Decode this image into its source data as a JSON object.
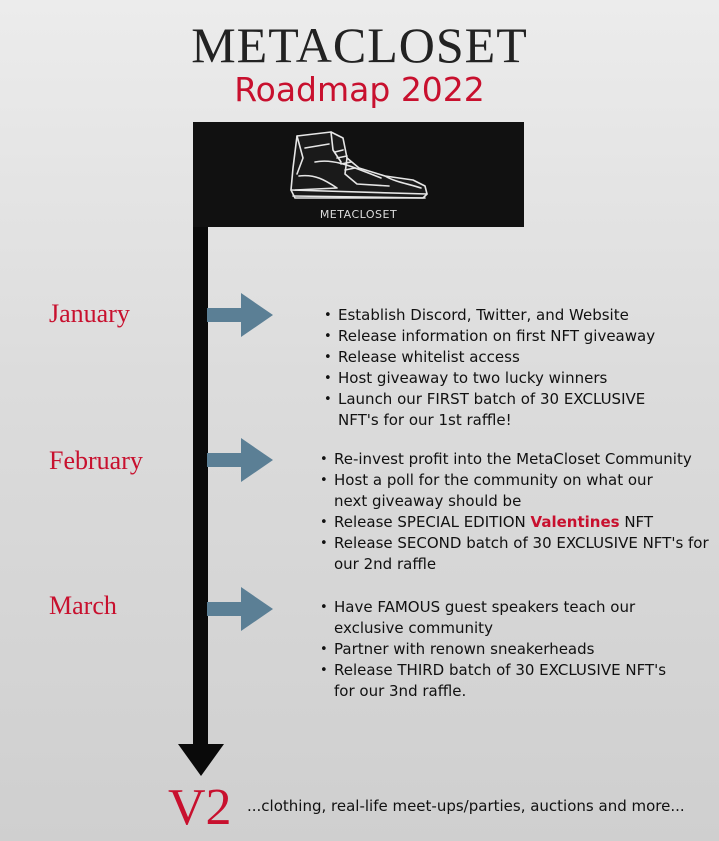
{
  "header": {
    "title": "METACLOSET",
    "subtitle": "Roadmap 2022"
  },
  "banner": {
    "logo_icon": "sneaker-icon",
    "label": "METACLOSET"
  },
  "colors": {
    "accent_red": "#c8102e",
    "arrow_blue": "#5b7f95",
    "timeline_black": "#0a0a0a"
  },
  "months": [
    {
      "name": "January",
      "items": [
        "Establish Discord, Twitter, and Website",
        "Release information on first NFT giveaway",
        "Release whitelist access",
        "Host giveaway to two lucky winners",
        "Launch our FIRST batch of 30 EXCLUSIVE NFT's for our 1st raffle!"
      ]
    },
    {
      "name": "February",
      "items": [
        "Re-invest profit into the MetaCloset Community",
        "Host a poll for the community on what our next giveaway should be",
        {
          "before": "Release SPECIAL EDITION ",
          "highlight": "Valentines",
          "after": " NFT"
        },
        "Release SECOND batch of 30 EXCLUSIVE NFT's for our 2nd raffle"
      ]
    },
    {
      "name": "March",
      "items": [
        "Have FAMOUS guest speakers teach our exclusive community",
        "Partner with renown sneakerheads",
        "Release THIRD batch of 30 EXCLUSIVE NFT's for our 3nd raffle."
      ]
    }
  ],
  "v2": {
    "label": "V2",
    "text": "...clothing, real-life meet-ups/parties, auctions and more..."
  }
}
